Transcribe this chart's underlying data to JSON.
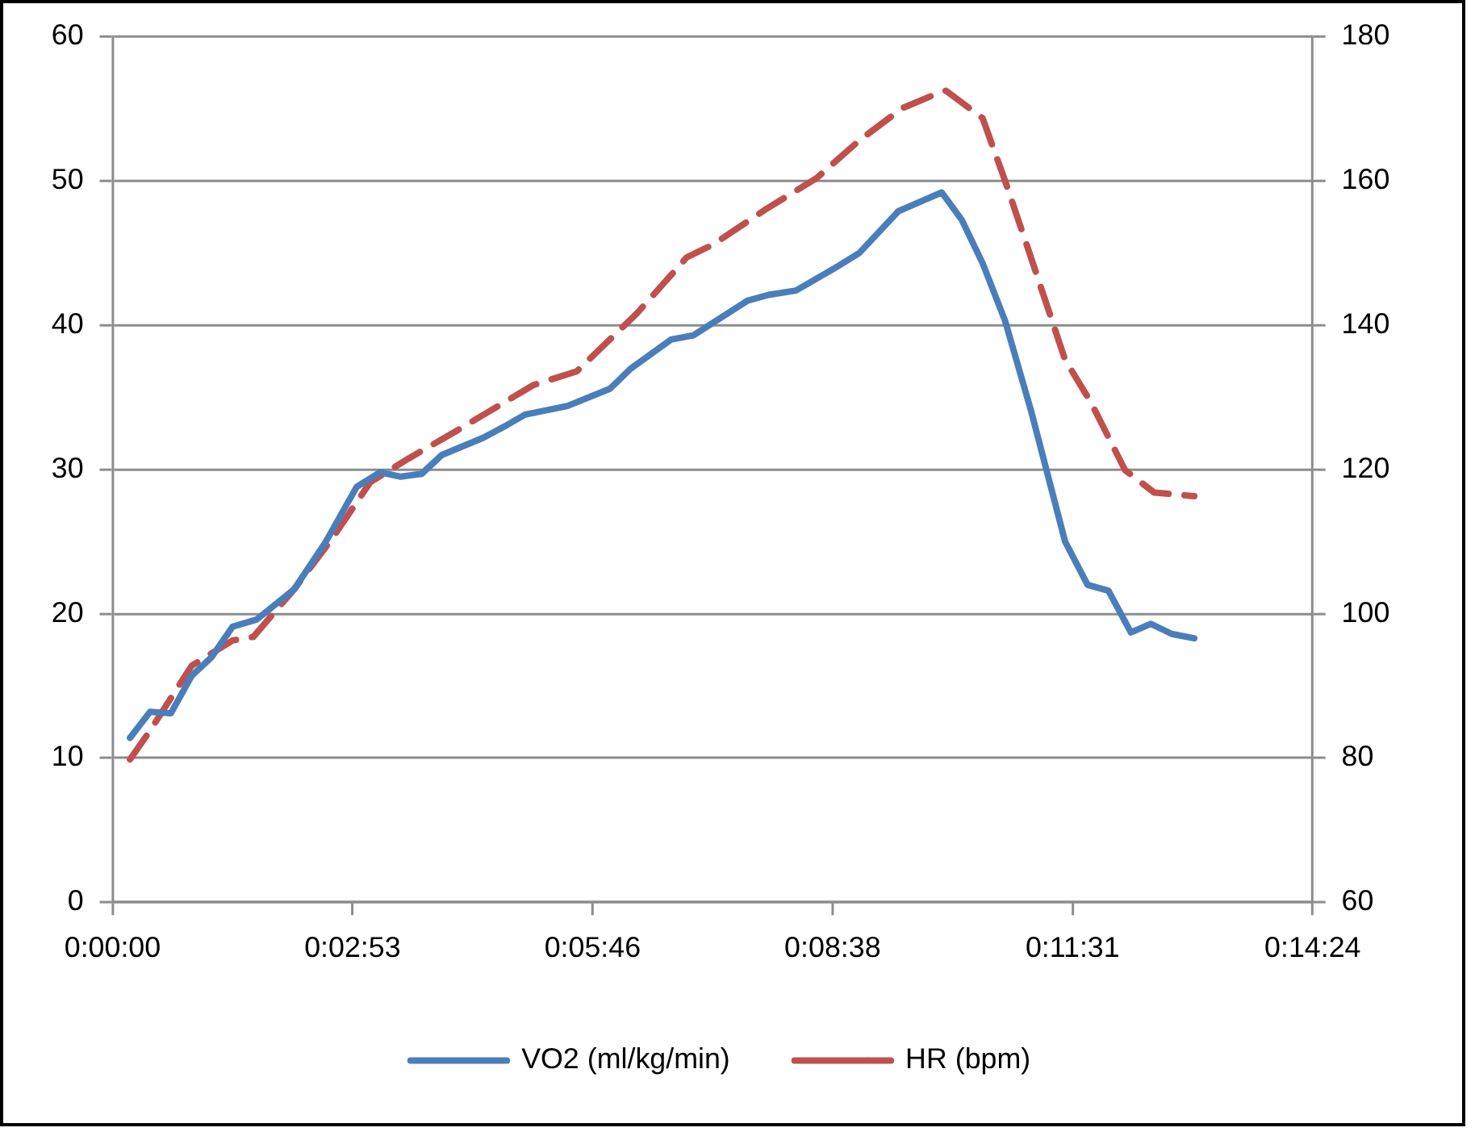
{
  "chart_data": {
    "type": "line",
    "xlim": [
      0,
      14.4
    ],
    "xticks": [
      {
        "value": 0,
        "label": "0:00:00"
      },
      {
        "value": 2.88,
        "label": "0:02:53"
      },
      {
        "value": 5.76,
        "label": "0:05:46"
      },
      {
        "value": 8.64,
        "label": "0:08:38"
      },
      {
        "value": 11.52,
        "label": "0:11:31"
      },
      {
        "value": 14.4,
        "label": "0:14:24"
      }
    ],
    "ylim": [
      0,
      60
    ],
    "yticks": [
      0,
      10,
      20,
      30,
      40,
      50,
      60
    ],
    "y2lim": [
      60,
      180
    ],
    "y2ticks": [
      60,
      80,
      100,
      120,
      140,
      160,
      180
    ],
    "grid": "y",
    "legend": "bottom",
    "marker": "none",
    "series": [
      {
        "name": "VO2 (ml/kg/min)",
        "color": "#4a7ebb",
        "line_style": "solid",
        "x": [
          0.21,
          0.45,
          0.7,
          0.95,
          1.19,
          1.44,
          1.73,
          2.18,
          2.55,
          2.93,
          3.21,
          3.46,
          3.71,
          3.95,
          4.45,
          4.74,
          4.95,
          5.46,
          5.97,
          6.22,
          6.7,
          6.97,
          7.62,
          7.87,
          8.2,
          8.65,
          8.96,
          9.43,
          9.95,
          10.19,
          10.44,
          10.71,
          11.02,
          11.43,
          11.7,
          11.95,
          12.22,
          12.46,
          12.71,
          12.98
        ],
        "values": [
          11.4,
          13.2,
          13.1,
          15.7,
          17.0,
          19.1,
          19.6,
          21.7,
          24.9,
          28.8,
          29.8,
          29.5,
          29.7,
          31.0,
          32.2,
          33.1,
          33.8,
          34.4,
          35.6,
          37.0,
          39.0,
          39.3,
          41.7,
          42.1,
          42.4,
          43.9,
          45.0,
          47.9,
          49.2,
          47.3,
          44.3,
          40.3,
          34.1,
          25.0,
          22.0,
          21.6,
          18.7,
          19.3,
          18.6,
          18.3
        ]
      },
      {
        "name": "HR (bpm)",
        "color": "#c0504d",
        "line_style": "dashed",
        "axis": "y2",
        "x": [
          0.21,
          0.45,
          0.95,
          1.44,
          1.69,
          2.18,
          2.64,
          3.09,
          3.55,
          4.12,
          5.05,
          5.57,
          5.84,
          6.29,
          6.89,
          7.21,
          7.83,
          8.45,
          8.96,
          9.48,
          9.81,
          10.0,
          10.44,
          10.71,
          11.02,
          11.43,
          11.74,
          12.15,
          12.5,
          12.98
        ],
        "values": [
          79.8,
          83.8,
          92.8,
          96.3,
          96.8,
          103.4,
          110.5,
          118.2,
          121.5,
          125.3,
          131.7,
          133.6,
          136.6,
          141.6,
          149.4,
          151.2,
          156.0,
          160.4,
          165.6,
          170.1,
          171.7,
          172.5,
          168.7,
          160.0,
          149.4,
          135.2,
          129.3,
          119.9,
          116.8,
          116.3
        ]
      }
    ]
  }
}
